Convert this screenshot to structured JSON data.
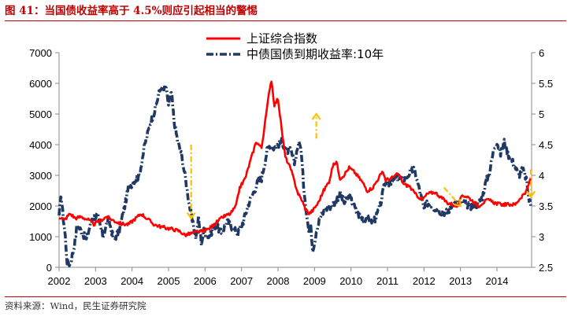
{
  "header": {
    "title": "图 41：当国债收益率高于 4.5%则应引起相当的警惕"
  },
  "footer": {
    "source": "资料来源：Wind，民生证券研究院"
  },
  "colors": {
    "title": "#C00000",
    "shanghai": "#FF0000",
    "bond": "#1F3864",
    "arrow": "#FFC000"
  },
  "chart_data": {
    "type": "line",
    "title": "",
    "x_range": [
      2002,
      2014.95
    ],
    "x_ticks": [
      "2002",
      "2003",
      "2004",
      "2005",
      "2006",
      "2007",
      "2008",
      "2009",
      "2010",
      "2011",
      "2012",
      "2013",
      "2014"
    ],
    "y_left": {
      "label": "",
      "lim": [
        0,
        7000
      ],
      "ticks": [
        "0",
        "1000",
        "2000",
        "3000",
        "4000",
        "5000",
        "6000",
        "7000"
      ]
    },
    "y_right": {
      "label": "",
      "lim": [
        2.5,
        6
      ],
      "ticks": [
        "2.5",
        "3",
        "3.5",
        "4",
        "4.5",
        "5",
        "5.5",
        "6"
      ]
    },
    "legend_position": "top-center",
    "series": [
      {
        "name": "上证综合指数",
        "axis": "left",
        "style": "solid",
        "points": [
          [
            2002.0,
            1650
          ],
          [
            2002.15,
            1550
          ],
          [
            2002.3,
            1750
          ],
          [
            2002.45,
            1600
          ],
          [
            2002.6,
            1650
          ],
          [
            2002.8,
            1550
          ],
          [
            2002.95,
            1400
          ],
          [
            2003.1,
            1500
          ],
          [
            2003.3,
            1650
          ],
          [
            2003.5,
            1520
          ],
          [
            2003.7,
            1420
          ],
          [
            2003.9,
            1400
          ],
          [
            2004.05,
            1550
          ],
          [
            2004.25,
            1750
          ],
          [
            2004.4,
            1600
          ],
          [
            2004.6,
            1400
          ],
          [
            2004.8,
            1320
          ],
          [
            2004.95,
            1280
          ],
          [
            2005.1,
            1250
          ],
          [
            2005.3,
            1180
          ],
          [
            2005.45,
            1050
          ],
          [
            2005.6,
            1100
          ],
          [
            2005.8,
            1150
          ],
          [
            2005.95,
            1180
          ],
          [
            2006.1,
            1250
          ],
          [
            2006.3,
            1450
          ],
          [
            2006.5,
            1650
          ],
          [
            2006.7,
            1750
          ],
          [
            2006.85,
            2000
          ],
          [
            2006.95,
            2600
          ],
          [
            2007.1,
            2900
          ],
          [
            2007.25,
            3500
          ],
          [
            2007.4,
            4100
          ],
          [
            2007.55,
            3900
          ],
          [
            2007.7,
            5200
          ],
          [
            2007.78,
            5900
          ],
          [
            2007.82,
            6100
          ],
          [
            2007.9,
            5300
          ],
          [
            2008.0,
            5500
          ],
          [
            2008.1,
            4500
          ],
          [
            2008.2,
            3600
          ],
          [
            2008.35,
            3200
          ],
          [
            2008.45,
            2800
          ],
          [
            2008.55,
            2400
          ],
          [
            2008.65,
            2200
          ],
          [
            2008.75,
            1900
          ],
          [
            2008.85,
            1750
          ],
          [
            2008.95,
            1850
          ],
          [
            2009.1,
            2100
          ],
          [
            2009.25,
            2500
          ],
          [
            2009.4,
            2800
          ],
          [
            2009.5,
            3300
          ],
          [
            2009.6,
            3450
          ],
          [
            2009.7,
            2900
          ],
          [
            2009.8,
            3000
          ],
          [
            2009.95,
            3250
          ],
          [
            2010.1,
            3100
          ],
          [
            2010.3,
            2800
          ],
          [
            2010.45,
            2500
          ],
          [
            2010.6,
            2600
          ],
          [
            2010.8,
            3000
          ],
          [
            2010.88,
            3100
          ],
          [
            2010.95,
            2850
          ],
          [
            2011.1,
            2900
          ],
          [
            2011.3,
            3050
          ],
          [
            2011.45,
            2700
          ],
          [
            2011.6,
            2650
          ],
          [
            2011.75,
            2400
          ],
          [
            2011.95,
            2200
          ],
          [
            2012.1,
            2400
          ],
          [
            2012.3,
            2450
          ],
          [
            2012.5,
            2250
          ],
          [
            2012.65,
            2100
          ],
          [
            2012.8,
            2050
          ],
          [
            2012.92,
            1970
          ],
          [
            2013.05,
            2350
          ],
          [
            2013.2,
            2300
          ],
          [
            2013.35,
            2150
          ],
          [
            2013.5,
            2000
          ],
          [
            2013.6,
            2100
          ],
          [
            2013.75,
            2200
          ],
          [
            2013.95,
            2100
          ],
          [
            2014.1,
            2050
          ],
          [
            2014.3,
            2050
          ],
          [
            2014.5,
            2050
          ],
          [
            2014.6,
            2200
          ],
          [
            2014.7,
            2350
          ],
          [
            2014.8,
            2450
          ],
          [
            2014.87,
            2700
          ],
          [
            2014.93,
            2950
          ]
        ]
      },
      {
        "name": "中债国债到期收益率:10年",
        "axis": "right",
        "style": "dashdot",
        "points": [
          [
            2002.0,
            3.3
          ],
          [
            2002.05,
            3.7
          ],
          [
            2002.1,
            3.4
          ],
          [
            2002.17,
            3.0
          ],
          [
            2002.22,
            2.6
          ],
          [
            2002.3,
            2.55
          ],
          [
            2002.4,
            2.8
          ],
          [
            2002.5,
            3.2
          ],
          [
            2002.6,
            3.1
          ],
          [
            2002.75,
            2.95
          ],
          [
            2002.9,
            3.3
          ],
          [
            2003.05,
            3.35
          ],
          [
            2003.2,
            3.0
          ],
          [
            2003.35,
            3.3
          ],
          [
            2003.5,
            2.95
          ],
          [
            2003.65,
            3.1
          ],
          [
            2003.8,
            3.5
          ],
          [
            2003.9,
            3.8
          ],
          [
            2004.05,
            3.9
          ],
          [
            2004.2,
            4.0
          ],
          [
            2004.35,
            4.5
          ],
          [
            2004.5,
            4.85
          ],
          [
            2004.62,
            5.05
          ],
          [
            2004.72,
            5.3
          ],
          [
            2004.8,
            5.45
          ],
          [
            2004.85,
            5.35
          ],
          [
            2004.92,
            5.45
          ],
          [
            2005.0,
            5.15
          ],
          [
            2005.08,
            5.35
          ],
          [
            2005.15,
            4.9
          ],
          [
            2005.25,
            4.55
          ],
          [
            2005.35,
            4.35
          ],
          [
            2005.45,
            4.0
          ],
          [
            2005.55,
            3.6
          ],
          [
            2005.65,
            3.25
          ],
          [
            2005.75,
            3.0
          ],
          [
            2005.82,
            3.3
          ],
          [
            2005.9,
            2.9
          ],
          [
            2005.97,
            3.1
          ],
          [
            2006.1,
            3.0
          ],
          [
            2006.3,
            3.2
          ],
          [
            2006.45,
            3.05
          ],
          [
            2006.6,
            3.25
          ],
          [
            2006.75,
            3.15
          ],
          [
            2006.9,
            3.05
          ],
          [
            2007.05,
            3.25
          ],
          [
            2007.2,
            3.55
          ],
          [
            2007.35,
            3.75
          ],
          [
            2007.45,
            3.9
          ],
          [
            2007.55,
            3.95
          ],
          [
            2007.7,
            4.4
          ],
          [
            2007.78,
            4.5
          ],
          [
            2007.88,
            4.45
          ],
          [
            2008.0,
            4.5
          ],
          [
            2008.1,
            4.55
          ],
          [
            2008.25,
            4.4
          ],
          [
            2008.35,
            4.4
          ],
          [
            2008.45,
            4.2
          ],
          [
            2008.55,
            4.5
          ],
          [
            2008.62,
            4.5
          ],
          [
            2008.7,
            3.85
          ],
          [
            2008.78,
            3.4
          ],
          [
            2008.85,
            3.05
          ],
          [
            2008.9,
            3.2
          ],
          [
            2008.95,
            2.8
          ],
          [
            2009.0,
            2.9
          ],
          [
            2009.05,
            3.1
          ],
          [
            2009.15,
            3.3
          ],
          [
            2009.3,
            3.45
          ],
          [
            2009.45,
            3.5
          ],
          [
            2009.55,
            3.55
          ],
          [
            2009.7,
            3.7
          ],
          [
            2009.82,
            3.55
          ],
          [
            2009.95,
            3.65
          ],
          [
            2010.05,
            3.55
          ],
          [
            2010.15,
            3.4
          ],
          [
            2010.3,
            3.3
          ],
          [
            2010.45,
            3.3
          ],
          [
            2010.55,
            3.25
          ],
          [
            2010.68,
            3.3
          ],
          [
            2010.8,
            3.5
          ],
          [
            2010.92,
            3.85
          ],
          [
            2011.0,
            3.9
          ],
          [
            2011.1,
            3.85
          ],
          [
            2011.2,
            3.95
          ],
          [
            2011.35,
            3.95
          ],
          [
            2011.5,
            3.95
          ],
          [
            2011.62,
            4.05
          ],
          [
            2011.72,
            4.1
          ],
          [
            2011.8,
            3.95
          ],
          [
            2011.9,
            3.7
          ],
          [
            2012.0,
            3.45
          ],
          [
            2012.1,
            3.55
          ],
          [
            2012.2,
            3.5
          ],
          [
            2012.35,
            3.45
          ],
          [
            2012.5,
            3.4
          ],
          [
            2012.65,
            3.4
          ],
          [
            2012.75,
            3.5
          ],
          [
            2012.85,
            3.55
          ],
          [
            2012.95,
            3.55
          ],
          [
            2013.1,
            3.55
          ],
          [
            2013.25,
            3.5
          ],
          [
            2013.4,
            3.5
          ],
          [
            2013.5,
            3.55
          ],
          [
            2013.6,
            3.65
          ],
          [
            2013.7,
            3.9
          ],
          [
            2013.8,
            4.05
          ],
          [
            2013.92,
            4.45
          ],
          [
            2014.0,
            4.55
          ],
          [
            2014.1,
            4.35
          ],
          [
            2014.2,
            4.55
          ],
          [
            2014.3,
            4.35
          ],
          [
            2014.45,
            4.2
          ],
          [
            2014.6,
            4.0
          ],
          [
            2014.7,
            4.1
          ],
          [
            2014.8,
            3.95
          ],
          [
            2014.88,
            3.6
          ],
          [
            2014.94,
            3.5
          ]
        ]
      }
    ],
    "annotations": [
      {
        "type": "dashed-arrow",
        "direction": "down",
        "x": 2005.62,
        "y_top": 4.5,
        "y_bottom": 3.3
      },
      {
        "type": "dashed-arrow",
        "direction": "up",
        "x": 2009.05,
        "y_top": 5.0,
        "y_bottom": 4.6
      },
      {
        "type": "dashed-arrow",
        "direction": "down-right",
        "x_start": 2012.55,
        "x_end": 2013.0,
        "y_top": 3.8,
        "y_bottom": 3.5
      },
      {
        "type": "dashed-arrow",
        "direction": "down",
        "x": 2014.93,
        "y_top": 4.1,
        "y_bottom": 3.65
      }
    ]
  }
}
